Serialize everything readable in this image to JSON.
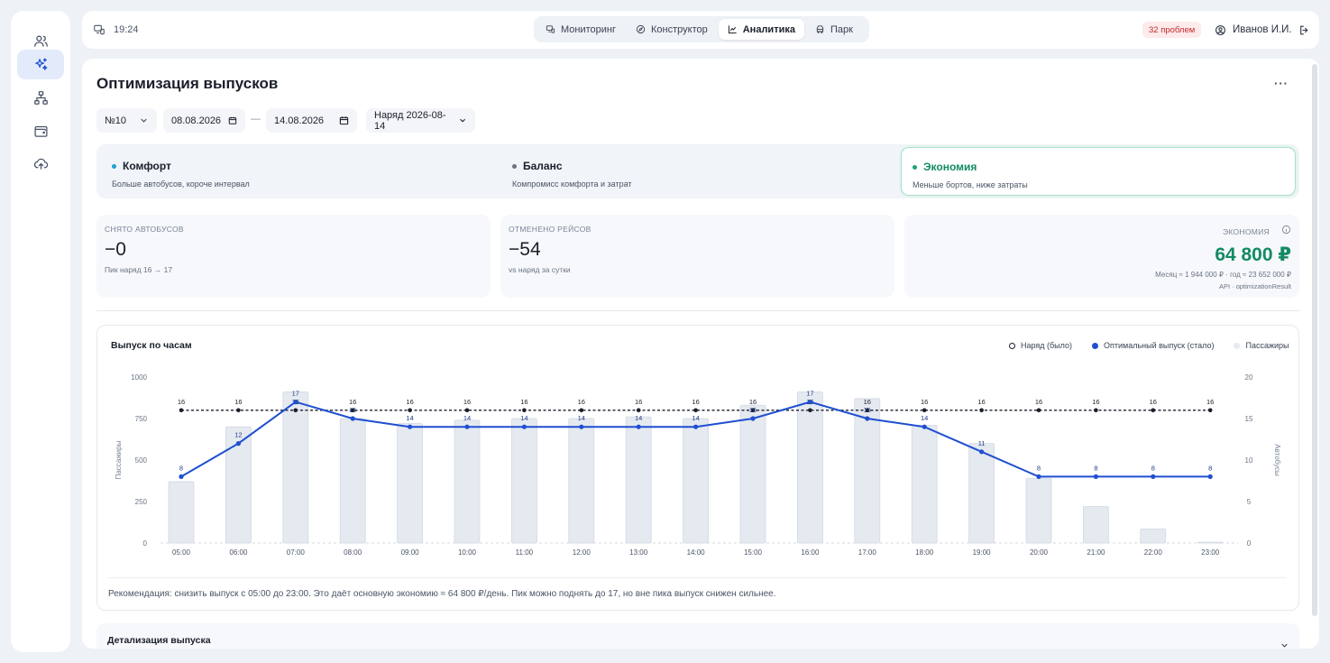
{
  "sidebar": {
    "items": [
      {
        "icon": "users-icon",
        "active": false
      },
      {
        "icon": "sparkles-icon",
        "active": true
      },
      {
        "icon": "network-icon",
        "active": false
      },
      {
        "icon": "wallet-icon",
        "active": false
      },
      {
        "icon": "cloud-upload-icon",
        "active": false
      }
    ]
  },
  "topbar": {
    "time": "19:24",
    "tabs": [
      {
        "label": "Мониторинг",
        "icon": "monitor-icon",
        "active": false
      },
      {
        "label": "Конструктор",
        "icon": "compass-icon",
        "active": false
      },
      {
        "label": "Аналитика",
        "icon": "chart-icon",
        "active": true
      },
      {
        "label": "Парк",
        "icon": "bus-icon",
        "active": false
      }
    ],
    "problems": "32 проблем",
    "user": "Иванов И.И."
  },
  "page": {
    "title": "Оптимизация выпусков",
    "more": "···"
  },
  "filters": {
    "route": "№10",
    "date_from": "08.08.2026",
    "date_to": "14.08.2026",
    "separator": "—",
    "order": "Наряд 2026-08-14"
  },
  "modes": [
    {
      "title": "Комфорт",
      "subtitle": "Больше автобусов, короче интервал",
      "color": "#1ea0d4",
      "active": false
    },
    {
      "title": "Баланс",
      "subtitle": "Компромисс комфорта и затрат",
      "color": "#6b7280",
      "active": false
    },
    {
      "title": "Экономия",
      "subtitle": "Меньше бортов, ниже затраты",
      "color": "#1aa37a",
      "active": true
    }
  ],
  "cards": {
    "removed": {
      "label": "СНЯТО АВТОБУСОВ",
      "value": "−0",
      "sub": "Пик наряд 16 → 17"
    },
    "cancelled": {
      "label": "ОТМЕНЕНО РЕЙСОВ",
      "value": "−54",
      "sub": "vs наряд за сутки"
    },
    "savings": {
      "label": "ЭКОНОМИЯ",
      "value": "64 800 ₽",
      "sub": "Месяц ≈ 1 944 000 ₽ · год ≈ 23 652 000 ₽",
      "source": "API · optimizationResult",
      "color": "#138a63"
    }
  },
  "chart": {
    "title": "Выпуск по часам",
    "legend": [
      "Наряд (было)",
      "Оптимальный выпуск (стало)",
      "Пассажиры"
    ],
    "recommendation": "Рекомендация: снизить выпуск с 05:00 до 23:00. Это даёт основную экономию ≈ 64 800 ₽/день. Пик можно поднять до 17, но вне пика выпуск снижен сильнее."
  },
  "chart_data": {
    "type": "bar+line",
    "categories": [
      "05:00",
      "06:00",
      "07:00",
      "08:00",
      "09:00",
      "10:00",
      "11:00",
      "12:00",
      "13:00",
      "14:00",
      "15:00",
      "16:00",
      "17:00",
      "18:00",
      "19:00",
      "20:00",
      "21:00",
      "22:00",
      "23:00"
    ],
    "series": [
      {
        "name": "Пассажиры",
        "type": "bar",
        "axis": "left",
        "values": [
          370,
          700,
          910,
          750,
          720,
          740,
          750,
          750,
          760,
          750,
          830,
          910,
          870,
          710,
          600,
          390,
          220,
          85,
          5
        ]
      },
      {
        "name": "Наряд (было)",
        "type": "line",
        "style": "dashed",
        "axis": "right",
        "values": [
          16,
          16,
          16,
          16,
          16,
          16,
          16,
          16,
          16,
          16,
          16,
          16,
          16,
          16,
          16,
          16,
          16,
          16,
          16
        ]
      },
      {
        "name": "Оптимальный выпуск (стало)",
        "type": "line",
        "axis": "right",
        "values": [
          8,
          12,
          17,
          15,
          14,
          14,
          14,
          14,
          14,
          14,
          15,
          17,
          15,
          14,
          11,
          8,
          8,
          8,
          8
        ]
      }
    ],
    "ylabel_left": "Пассажиры",
    "ylabel_right": "Автобусы",
    "ylim_left": [
      0,
      1000
    ],
    "yticks_left": [
      0,
      250,
      500,
      750,
      1000
    ],
    "ylim_right": [
      0,
      20
    ],
    "yticks_right": [
      0,
      5,
      10,
      15,
      20
    ],
    "legend_position": "top-right"
  },
  "details": {
    "title": "Детализация выпуска"
  }
}
